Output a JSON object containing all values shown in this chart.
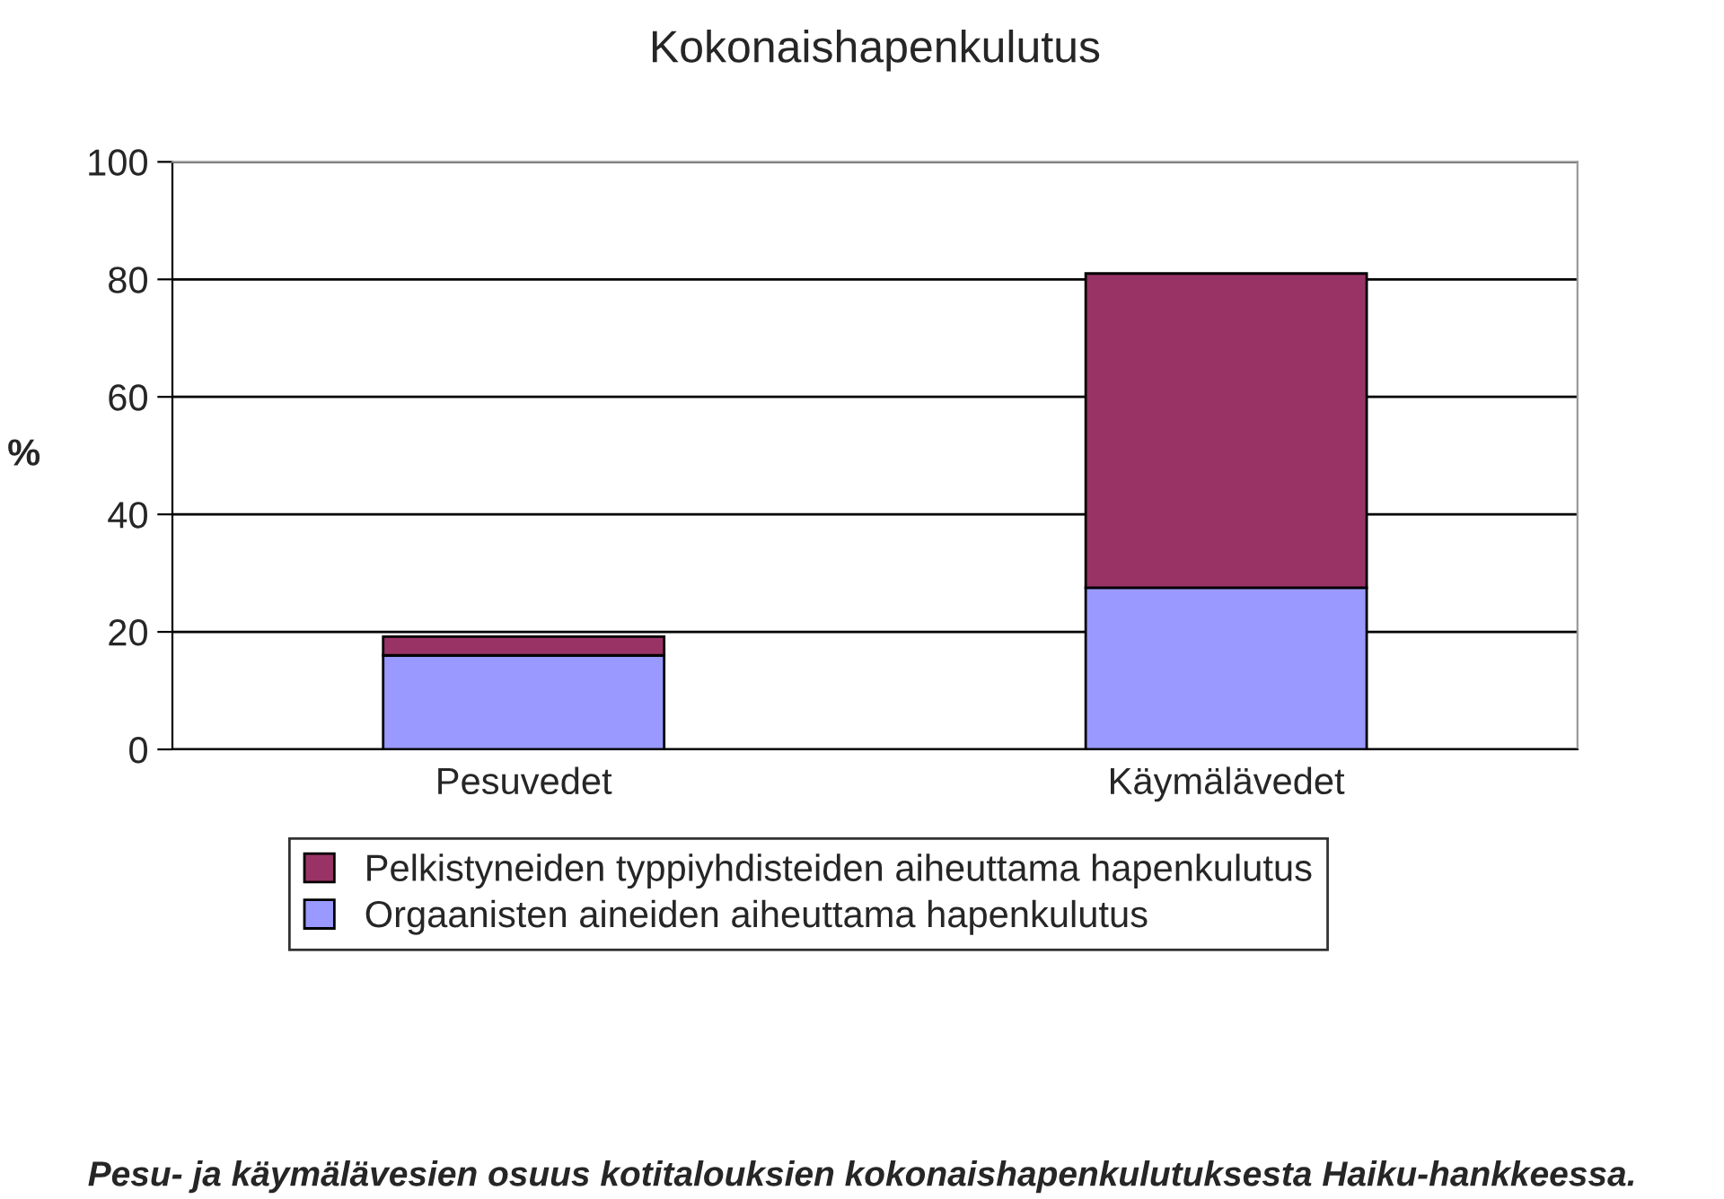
{
  "chart_data": {
    "type": "bar",
    "title": "Kokonaishapenkulutus",
    "ylabel": "%",
    "categories": [
      "Pesuvedet",
      "Käymälävedet"
    ],
    "stacked": true,
    "series": [
      {
        "name": "Orgaanisten aineiden aiheuttama hapenkulutus",
        "color": "#9999ff",
        "values": [
          16,
          27.5
        ]
      },
      {
        "name": "Pelkistyneiden typpiyhdisteiden aiheuttama hapenkulutus",
        "color": "#993366",
        "values": [
          3.2,
          53.5
        ]
      }
    ],
    "ylim": [
      0,
      100
    ],
    "yticks": [
      0,
      20,
      40,
      60,
      80,
      100
    ],
    "grid": "y",
    "legend": "bottom",
    "annotations": [
      "Pesu- ja käymälävesien osuus kotitalouksien kokonaishapenkulutuksesta Haiku-hankkeessa."
    ]
  }
}
